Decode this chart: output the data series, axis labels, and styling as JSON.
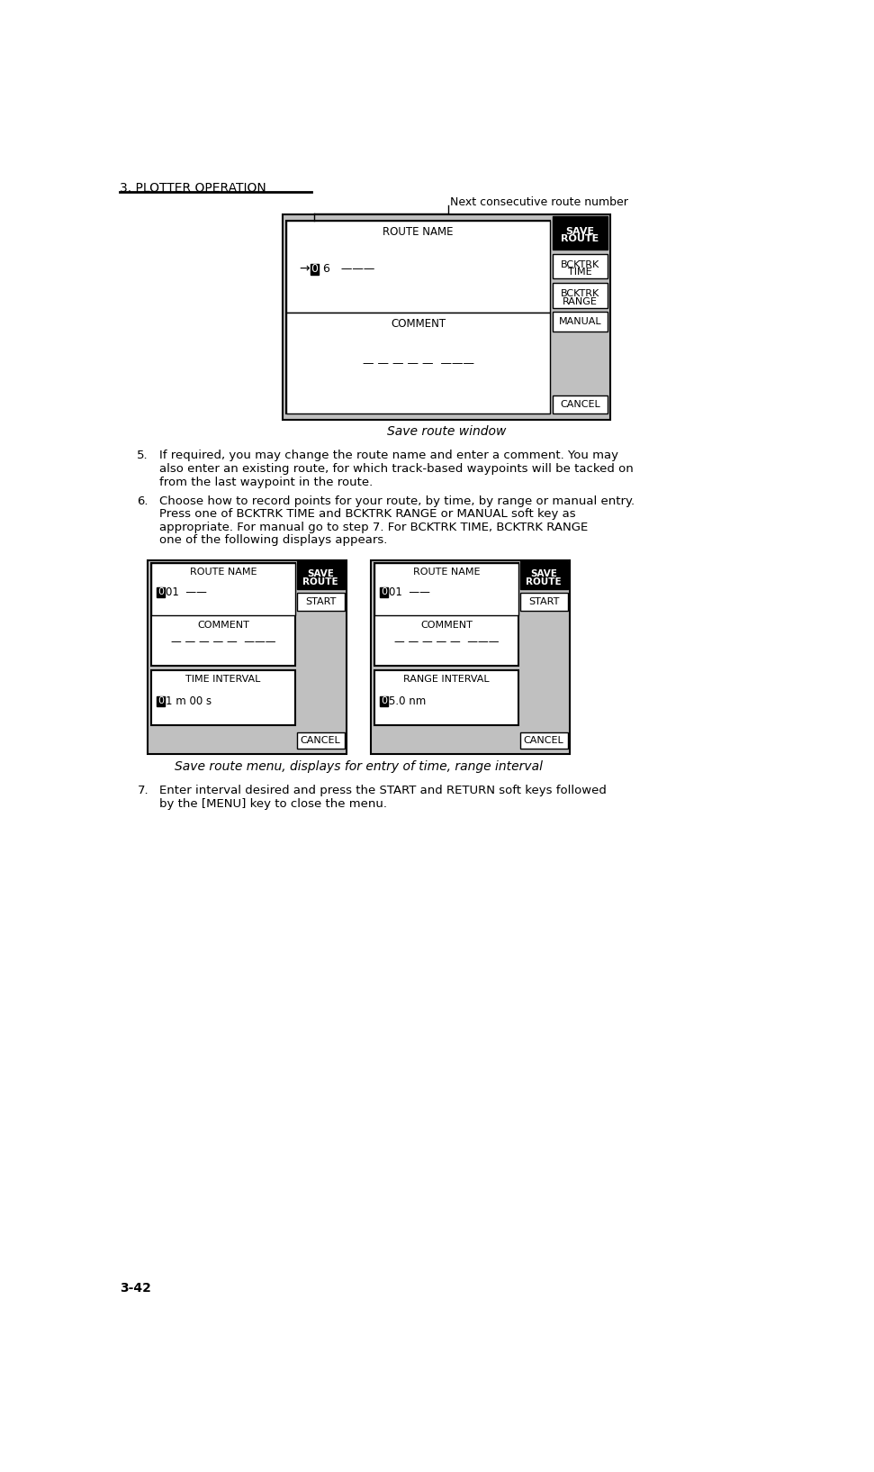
{
  "page_header": "3. PLOTTER OPERATION",
  "page_footer": "3-42",
  "bg_color": "#ffffff",
  "gray_color": "#c0c0c0",
  "annotation_text": "Next consecutive route number",
  "diagram1_caption": "Save route window",
  "diagram2_caption": "Save route menu, displays for entry of time, range interval",
  "para5_num": "5.",
  "para5_text": "If required, you may change the route name and enter a comment. You may\nalso enter an existing route, for which track-based waypoints will be tacked on\nfrom the last waypoint in the route.",
  "para6_num": "6.",
  "para6_text": "Choose how to record points for your route, by time, by range or manual entry.\nPress one of BCKTRK TIME and BCKTRK RANGE or MANUAL soft key as\nappropriate. For manual go to step 7. For BCKTRK TIME, BCKTRK RANGE\none of the following displays appears.",
  "para7_num": "7.",
  "para7_text": "Enter interval desired and press the START and RETURN soft keys followed\nby the [MENU] key to close the menu."
}
